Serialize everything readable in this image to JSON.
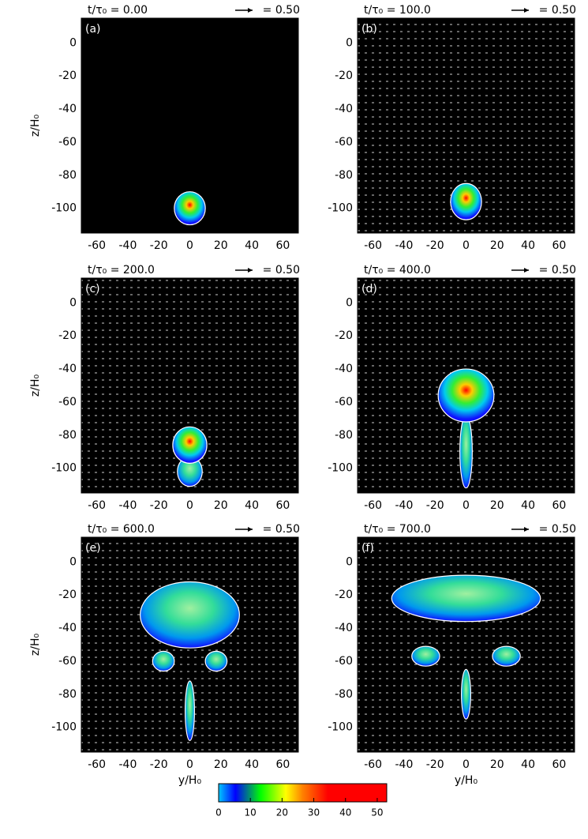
{
  "chart_data": [
    {
      "type": "field",
      "title": "t/τ₀ = 0.00",
      "panel_label": "(a)",
      "vector_label": "= 0.50",
      "ylabel": "z/H₀",
      "xlim": [
        -70,
        70
      ],
      "ylim": [
        -115,
        15
      ],
      "xticks": [
        -60,
        -40,
        -20,
        0,
        20,
        40,
        60
      ],
      "yticks": [
        0,
        -20,
        -40,
        -60,
        -80,
        -100
      ]
    },
    {
      "type": "field",
      "title": "t/τ₀ = 100.0",
      "panel_label": "(b)",
      "vector_label": "= 0.50",
      "xlim": [
        -70,
        70
      ],
      "ylim": [
        -115,
        15
      ],
      "xticks": [
        -60,
        -40,
        -20,
        0,
        20,
        40,
        60
      ],
      "yticks": [
        0,
        -20,
        -40,
        -60,
        -80,
        -100
      ]
    },
    {
      "type": "field",
      "title": "t/τ₀ = 200.0",
      "panel_label": "(c)",
      "vector_label": "= 0.50",
      "ylabel": "z/H₀",
      "xlim": [
        -70,
        70
      ],
      "ylim": [
        -115,
        15
      ],
      "xticks": [
        -60,
        -40,
        -20,
        0,
        20,
        40,
        60
      ],
      "yticks": [
        0,
        -20,
        -40,
        -60,
        -80,
        -100
      ]
    },
    {
      "type": "field",
      "title": "t/τ₀ = 400.0",
      "panel_label": "(d)",
      "vector_label": "= 0.50",
      "xlim": [
        -70,
        70
      ],
      "ylim": [
        -115,
        15
      ],
      "xticks": [
        -60,
        -40,
        -20,
        0,
        20,
        40,
        60
      ],
      "yticks": [
        0,
        -20,
        -40,
        -60,
        -80,
        -100
      ]
    },
    {
      "type": "field",
      "title": "t/τ₀ = 600.0",
      "panel_label": "(e)",
      "vector_label": "= 0.50",
      "ylabel": "z/H₀",
      "xlabel": "y/H₀",
      "xlim": [
        -70,
        70
      ],
      "ylim": [
        -115,
        15
      ],
      "xticks": [
        -60,
        -40,
        -20,
        0,
        20,
        40,
        60
      ],
      "yticks": [
        0,
        -20,
        -40,
        -60,
        -80,
        -100
      ]
    },
    {
      "type": "field",
      "title": "t/τ₀ = 700.0",
      "panel_label": "(f)",
      "vector_label": "= 0.50",
      "xlabel": "y/H₀",
      "xlim": [
        -70,
        70
      ],
      "ylim": [
        -115,
        15
      ],
      "xticks": [
        -60,
        -40,
        -20,
        0,
        20,
        40,
        60
      ],
      "yticks": [
        0,
        -20,
        -40,
        -60,
        -80,
        -100
      ]
    },
    {
      "type": "colorbar",
      "colormap": "jet",
      "xlim": [
        0,
        53
      ],
      "xticks": [
        0,
        10,
        20,
        30,
        40,
        50
      ]
    }
  ]
}
